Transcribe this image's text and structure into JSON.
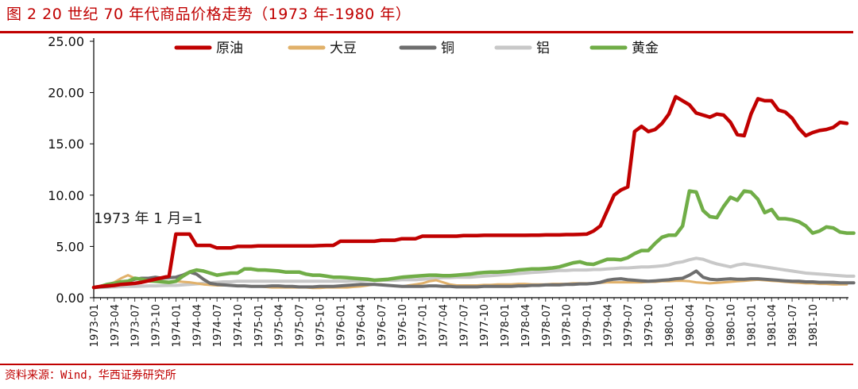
{
  "figure": {
    "title": "图 2 20 世纪 70 年代商品价格走势（1973 年-1980 年）",
    "source": "资料来源：Wind，华西证券研究所"
  },
  "chart_data": {
    "type": "line",
    "title": "",
    "xlabel": "",
    "ylabel": "",
    "ylim": [
      0,
      25
    ],
    "yticks": [
      "0.00",
      "5.00",
      "10.00",
      "15.00",
      "20.00",
      "25.00"
    ],
    "grid": false,
    "legend_position": "top",
    "annotation": "1973 年 1 月=1",
    "x_start": "1973-01",
    "x_end": "1981-12",
    "xtick_labels": [
      "1973-01",
      "1973-04",
      "1973-07",
      "1973-10",
      "1974-01",
      "1974-04",
      "1974-07",
      "1974-10",
      "1975-01",
      "1975-04",
      "1975-07",
      "1975-10",
      "1976-01",
      "1976-04",
      "1976-07",
      "1976-10",
      "1977-01",
      "1977-04",
      "1977-07",
      "1977-10",
      "1978-01",
      "1978-04",
      "1978-07",
      "1978-10",
      "1979-01",
      "1979-04",
      "1979-07",
      "1979-10",
      "1980-01",
      "1980-04",
      "1980-07",
      "1980-10",
      "1981-01",
      "1981-04",
      "1981-07",
      "1981-10"
    ],
    "series": [
      {
        "name": "原油",
        "color": "#c00000",
        "width": 4.5,
        "values": [
          1.0,
          1.1,
          1.15,
          1.2,
          1.3,
          1.35,
          1.4,
          1.5,
          1.65,
          1.8,
          1.95,
          2.1,
          6.2,
          6.2,
          6.2,
          5.1,
          5.1,
          5.1,
          4.85,
          4.85,
          4.85,
          5.0,
          5.0,
          5.0,
          5.05,
          5.05,
          5.05,
          5.05,
          5.05,
          5.05,
          5.05,
          5.05,
          5.05,
          5.08,
          5.1,
          5.1,
          5.5,
          5.5,
          5.5,
          5.5,
          5.5,
          5.5,
          5.6,
          5.6,
          5.6,
          5.75,
          5.75,
          5.75,
          6.0,
          6.0,
          6.0,
          6.0,
          6.0,
          6.0,
          6.05,
          6.05,
          6.05,
          6.08,
          6.08,
          6.08,
          6.08,
          6.08,
          6.08,
          6.08,
          6.1,
          6.1,
          6.12,
          6.12,
          6.12,
          6.15,
          6.15,
          6.18,
          6.2,
          6.5,
          7.0,
          8.5,
          10.0,
          10.5,
          10.8,
          16.2,
          16.7,
          16.2,
          16.4,
          17.0,
          17.9,
          19.6,
          19.2,
          18.8,
          18.0,
          17.8,
          17.6,
          17.9,
          17.8,
          17.1,
          15.9,
          15.8,
          17.9,
          19.4,
          19.2,
          19.2,
          18.3,
          18.1,
          17.5,
          16.5,
          15.8,
          16.1,
          16.3,
          16.4,
          16.6,
          17.1,
          17.0
        ]
      },
      {
        "name": "大豆",
        "color": "#e1b16a",
        "width": 3,
        "values": [
          1.0,
          1.15,
          1.3,
          1.5,
          1.9,
          2.2,
          1.9,
          1.7,
          1.75,
          1.8,
          1.6,
          1.55,
          1.6,
          1.55,
          1.5,
          1.4,
          1.3,
          1.25,
          1.2,
          1.2,
          1.2,
          1.15,
          1.15,
          1.1,
          1.1,
          1.05,
          1.0,
          1.0,
          1.0,
          1.0,
          1.0,
          1.0,
          0.95,
          0.95,
          1.0,
          1.0,
          1.0,
          1.0,
          1.05,
          1.1,
          1.2,
          1.3,
          1.3,
          1.2,
          1.15,
          1.1,
          1.2,
          1.3,
          1.4,
          1.6,
          1.7,
          1.5,
          1.3,
          1.2,
          1.2,
          1.2,
          1.2,
          1.25,
          1.25,
          1.3,
          1.3,
          1.3,
          1.35,
          1.35,
          1.3,
          1.3,
          1.3,
          1.35,
          1.35,
          1.35,
          1.4,
          1.4,
          1.4,
          1.4,
          1.45,
          1.5,
          1.5,
          1.5,
          1.5,
          1.5,
          1.5,
          1.55,
          1.55,
          1.6,
          1.6,
          1.65,
          1.65,
          1.6,
          1.5,
          1.45,
          1.4,
          1.45,
          1.5,
          1.55,
          1.6,
          1.65,
          1.7,
          1.75,
          1.7,
          1.65,
          1.6,
          1.55,
          1.5,
          1.45,
          1.4,
          1.4,
          1.35,
          1.35,
          1.3,
          1.3,
          1.3
        ]
      },
      {
        "name": "铜",
        "color": "#6e6e6e",
        "width": 4,
        "values": [
          1.0,
          1.05,
          1.1,
          1.2,
          1.4,
          1.6,
          1.8,
          1.9,
          1.9,
          2.0,
          1.9,
          1.95,
          2.0,
          2.2,
          2.5,
          2.3,
          1.8,
          1.4,
          1.3,
          1.25,
          1.2,
          1.15,
          1.15,
          1.1,
          1.1,
          1.1,
          1.15,
          1.15,
          1.1,
          1.1,
          1.05,
          1.05,
          1.05,
          1.1,
          1.1,
          1.1,
          1.15,
          1.2,
          1.25,
          1.3,
          1.3,
          1.3,
          1.25,
          1.2,
          1.15,
          1.1,
          1.1,
          1.1,
          1.1,
          1.15,
          1.15,
          1.1,
          1.1,
          1.05,
          1.05,
          1.05,
          1.05,
          1.1,
          1.1,
          1.1,
          1.1,
          1.1,
          1.15,
          1.15,
          1.2,
          1.2,
          1.25,
          1.25,
          1.25,
          1.3,
          1.3,
          1.35,
          1.35,
          1.4,
          1.5,
          1.7,
          1.8,
          1.85,
          1.75,
          1.7,
          1.65,
          1.6,
          1.65,
          1.7,
          1.75,
          1.85,
          1.9,
          2.2,
          2.6,
          2.0,
          1.8,
          1.75,
          1.8,
          1.85,
          1.8,
          1.8,
          1.85,
          1.85,
          1.8,
          1.75,
          1.7,
          1.65,
          1.6,
          1.6,
          1.55,
          1.55,
          1.5,
          1.5,
          1.5,
          1.45,
          1.45,
          1.45
        ]
      },
      {
        "name": "铝",
        "color": "#c8c8c8",
        "width": 4,
        "values": [
          1.0,
          1.0,
          1.02,
          1.05,
          1.08,
          1.1,
          1.1,
          1.12,
          1.15,
          1.15,
          1.18,
          1.2,
          1.2,
          1.25,
          1.3,
          1.35,
          1.4,
          1.45,
          1.5,
          1.55,
          1.55,
          1.6,
          1.6,
          1.6,
          1.6,
          1.6,
          1.6,
          1.6,
          1.6,
          1.6,
          1.6,
          1.6,
          1.6,
          1.6,
          1.6,
          1.6,
          1.6,
          1.6,
          1.65,
          1.65,
          1.7,
          1.7,
          1.7,
          1.7,
          1.7,
          1.75,
          1.75,
          1.75,
          1.8,
          1.85,
          1.9,
          1.95,
          1.95,
          2.0,
          2.0,
          2.0,
          2.05,
          2.1,
          2.15,
          2.2,
          2.25,
          2.3,
          2.35,
          2.4,
          2.45,
          2.5,
          2.55,
          2.6,
          2.65,
          2.65,
          2.7,
          2.7,
          2.7,
          2.75,
          2.75,
          2.8,
          2.85,
          2.9,
          2.9,
          2.95,
          3.0,
          3.0,
          3.05,
          3.1,
          3.2,
          3.4,
          3.5,
          3.7,
          3.85,
          3.75,
          3.5,
          3.3,
          3.15,
          3.0,
          3.2,
          3.3,
          3.2,
          3.1,
          3.0,
          2.9,
          2.8,
          2.7,
          2.6,
          2.5,
          2.4,
          2.35,
          2.3,
          2.25,
          2.2,
          2.15,
          2.1,
          2.1
        ]
      },
      {
        "name": "黄金",
        "color": "#70ad47",
        "width": 4.5,
        "values": [
          1.0,
          1.1,
          1.3,
          1.4,
          1.55,
          1.6,
          1.9,
          1.8,
          1.65,
          1.6,
          1.55,
          1.5,
          1.6,
          2.1,
          2.5,
          2.7,
          2.6,
          2.4,
          2.2,
          2.3,
          2.4,
          2.4,
          2.8,
          2.8,
          2.7,
          2.7,
          2.65,
          2.6,
          2.5,
          2.5,
          2.5,
          2.3,
          2.2,
          2.2,
          2.1,
          2.0,
          2.0,
          1.95,
          1.9,
          1.85,
          1.8,
          1.7,
          1.75,
          1.8,
          1.9,
          2.0,
          2.05,
          2.1,
          2.15,
          2.2,
          2.2,
          2.15,
          2.15,
          2.2,
          2.25,
          2.3,
          2.4,
          2.45,
          2.5,
          2.5,
          2.55,
          2.6,
          2.7,
          2.75,
          2.8,
          2.8,
          2.85,
          2.9,
          3.0,
          3.2,
          3.4,
          3.5,
          3.3,
          3.25,
          3.5,
          3.75,
          3.75,
          3.7,
          3.9,
          4.3,
          4.6,
          4.6,
          5.3,
          5.9,
          6.1,
          6.1,
          7.0,
          10.4,
          10.3,
          8.5,
          7.9,
          7.8,
          8.9,
          9.8,
          9.5,
          10.4,
          10.3,
          9.6,
          8.3,
          8.6,
          7.7,
          7.7,
          7.6,
          7.4,
          7.0,
          6.3,
          6.5,
          6.9,
          6.8,
          6.4,
          6.3,
          6.3
        ]
      }
    ]
  }
}
